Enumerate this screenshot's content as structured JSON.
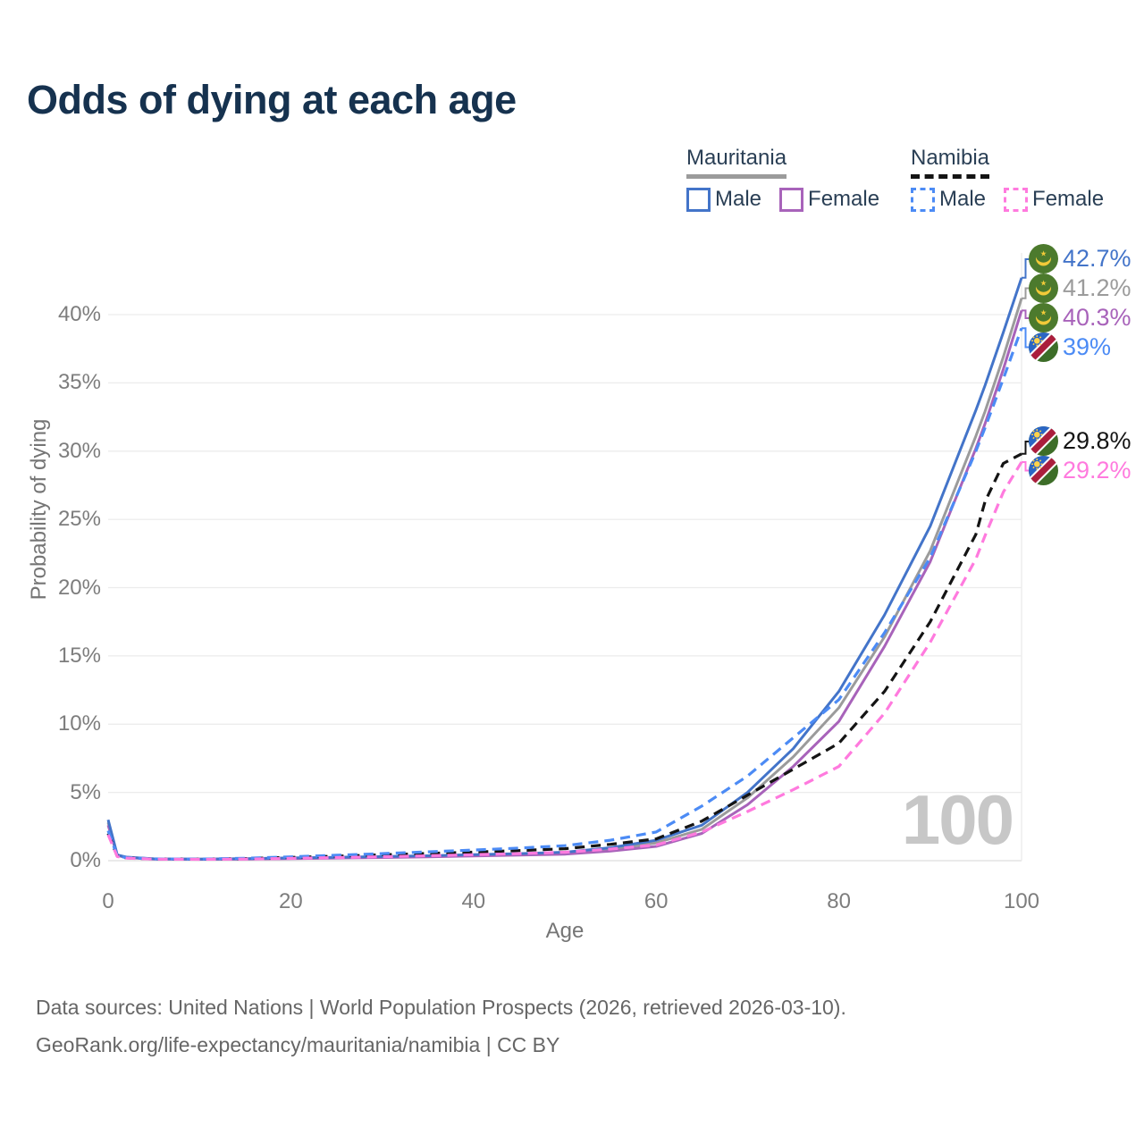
{
  "legend": {
    "groups": [
      {
        "country": "Mauritania",
        "underline_color": "#9b9b9b",
        "items": [
          {
            "label": "Male",
            "color": "#4374c9"
          },
          {
            "label": "Female",
            "color": "#a863ba"
          }
        ]
      },
      {
        "country": "Namibia",
        "underline_color": "#141414",
        "items": [
          {
            "label": "Male",
            "color": "#4c8bf5"
          },
          {
            "label": "Female",
            "color": "#ff7ade"
          }
        ]
      }
    ]
  },
  "hover_age_indicator": "100",
  "footer": {
    "line1": "Data sources: United Nations | World Population Prospects (2026, retrieved 2026-03-10).",
    "line2": "GeoRank.org/life-expectancy/mauritania/namibia | CC BY"
  },
  "chart_data": {
    "type": "line",
    "title": "Odds of dying at each age",
    "xlabel": "Age",
    "ylabel": "Probability of dying",
    "xlim": [
      0,
      100
    ],
    "ylim": [
      0,
      44
    ],
    "grid": "horizontal",
    "legend_position": "top-right",
    "x_ticks": [
      0,
      20,
      40,
      60,
      80,
      100
    ],
    "x_tick_labels": [
      "0",
      "20",
      "40",
      "60",
      "80",
      "100"
    ],
    "y_ticks": [
      0,
      5,
      10,
      15,
      20,
      25,
      30,
      35,
      40
    ],
    "y_tick_labels": [
      "0%",
      "5%",
      "10%",
      "15%",
      "20%",
      "25%",
      "30%",
      "35%",
      "40%"
    ],
    "ages": [
      0,
      1,
      2,
      5,
      10,
      15,
      20,
      25,
      30,
      35,
      40,
      45,
      50,
      55,
      60,
      65,
      70,
      75,
      80,
      85,
      90,
      95,
      96,
      98,
      100
    ],
    "series": [
      {
        "name": "Mauritania — Male",
        "country": "Mauritania",
        "sex": "male",
        "color": "#4374c9",
        "dash": false,
        "flag": "mauritania",
        "end_label": "42.7%",
        "end_value": 42.7,
        "values": [
          3.0,
          0.42,
          0.26,
          0.14,
          0.12,
          0.15,
          0.2,
          0.25,
          0.3,
          0.36,
          0.44,
          0.52,
          0.62,
          0.95,
          1.5,
          2.6,
          5.0,
          8.2,
          12.4,
          18.0,
          24.5,
          33.0,
          34.8,
          38.7,
          42.7
        ]
      },
      {
        "name": "Mauritania — Both sexes",
        "country": "Mauritania",
        "sex": "both",
        "color": "#9b9b9b",
        "dash": false,
        "flag": "mauritania",
        "end_label": "41.2%",
        "end_value": 41.2,
        "values": [
          2.8,
          0.4,
          0.24,
          0.13,
          0.11,
          0.13,
          0.18,
          0.22,
          0.27,
          0.32,
          0.39,
          0.46,
          0.55,
          0.82,
          1.3,
          2.3,
          4.6,
          7.6,
          11.2,
          16.4,
          22.7,
          31.1,
          32.9,
          36.9,
          41.2
        ]
      },
      {
        "name": "Mauritania — Female",
        "country": "Mauritania",
        "sex": "female",
        "color": "#a863ba",
        "dash": false,
        "flag": "mauritania",
        "end_label": "40.3%",
        "end_value": 40.3,
        "values": [
          2.6,
          0.38,
          0.23,
          0.12,
          0.1,
          0.12,
          0.15,
          0.19,
          0.23,
          0.28,
          0.34,
          0.41,
          0.48,
          0.7,
          1.05,
          2.0,
          4.1,
          6.9,
          10.2,
          15.7,
          21.9,
          30.2,
          32.0,
          36.0,
          40.3
        ]
      },
      {
        "name": "Namibia — Male",
        "country": "Namibia",
        "sex": "male",
        "color": "#4c8bf5",
        "dash": true,
        "flag": "namibia",
        "end_label": "39%",
        "end_value": 39.0,
        "values": [
          2.2,
          0.35,
          0.22,
          0.13,
          0.12,
          0.18,
          0.28,
          0.4,
          0.52,
          0.65,
          0.78,
          0.92,
          1.1,
          1.5,
          2.1,
          4.0,
          6.2,
          9.0,
          11.8,
          16.7,
          22.2,
          30.0,
          31.7,
          35.3,
          39.0
        ]
      },
      {
        "name": "Namibia — Both sexes",
        "country": "Namibia",
        "sex": "both",
        "color": "#141414",
        "dash": true,
        "flag": "namibia",
        "end_label": "29.8%",
        "end_value": 29.8,
        "values": [
          2.0,
          0.32,
          0.2,
          0.12,
          0.11,
          0.15,
          0.24,
          0.33,
          0.43,
          0.53,
          0.63,
          0.74,
          0.88,
          1.2,
          1.6,
          2.9,
          4.8,
          6.7,
          8.6,
          12.4,
          17.5,
          23.9,
          26.3,
          29.1,
          29.8
        ]
      },
      {
        "name": "Namibia — Female",
        "country": "Namibia",
        "sex": "female",
        "color": "#ff7ade",
        "dash": true,
        "flag": "namibia",
        "end_label": "29.2%",
        "end_value": 29.2,
        "values": [
          1.9,
          0.3,
          0.19,
          0.11,
          0.1,
          0.12,
          0.17,
          0.23,
          0.29,
          0.36,
          0.44,
          0.52,
          0.62,
          0.85,
          1.15,
          2.1,
          3.6,
          5.2,
          6.9,
          10.8,
          16.0,
          22.1,
          23.8,
          27.0,
          29.2
        ]
      }
    ]
  }
}
